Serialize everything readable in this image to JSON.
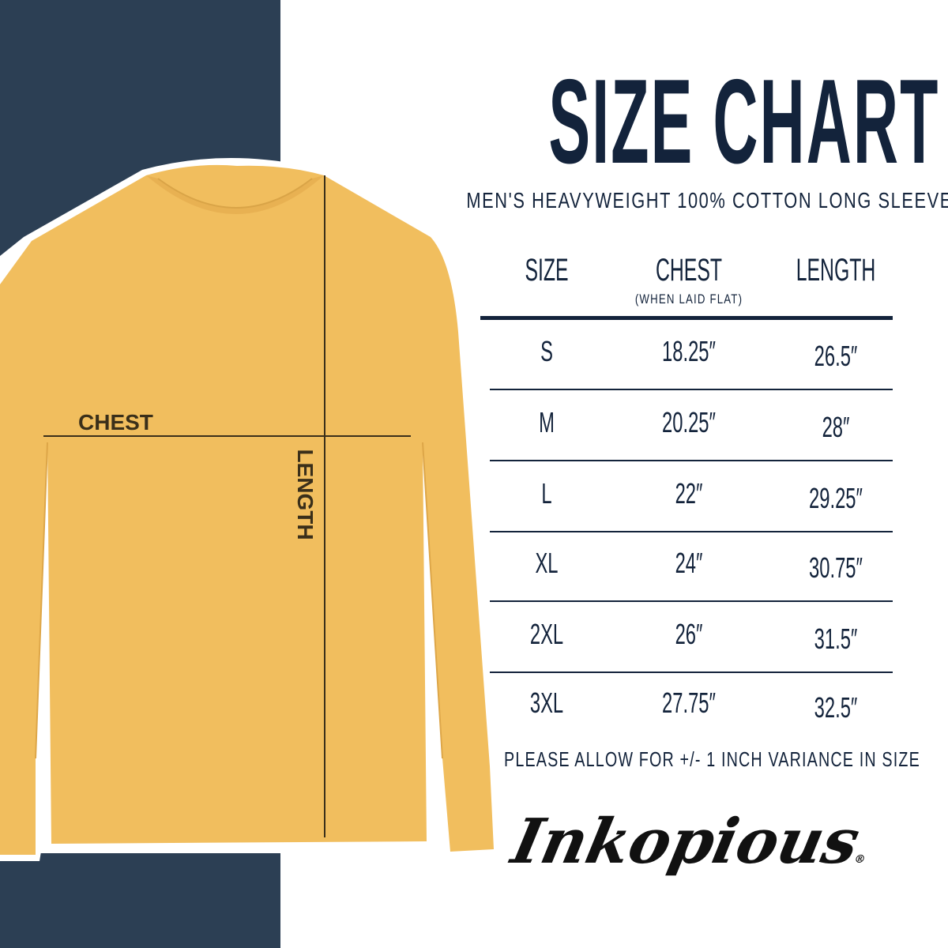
{
  "title": "SIZE CHART",
  "subtitle": "MEN'S HEAVYWEIGHT 100% COTTON LONG SLEEVE",
  "colors": {
    "navy": "#2c3f54",
    "text": "#13233b",
    "shirt": "#f1be5e"
  },
  "shirt_labels": {
    "chest": "CHEST",
    "length": "LENGTH"
  },
  "table": {
    "headers": {
      "size": "SIZE",
      "chest": "CHEST",
      "chest_note": "(WHEN LAID FLAT)",
      "length": "LENGTH"
    },
    "rows": [
      {
        "size": "S",
        "chest": "18.25″",
        "length": "26.5″"
      },
      {
        "size": "M",
        "chest": "20.25″",
        "length": "28″"
      },
      {
        "size": "L",
        "chest": "22″",
        "length": "29.25″"
      },
      {
        "size": "XL",
        "chest": "24″",
        "length": "30.75″"
      },
      {
        "size": "2XL",
        "chest": "26″",
        "length": "31.5″"
      },
      {
        "size": "3XL",
        "chest": "27.75″",
        "length": "32.5″"
      }
    ]
  },
  "footer": "PLEASE ALLOW FOR +/- 1 INCH VARIANCE IN SIZE",
  "logo": "Inkopious"
}
